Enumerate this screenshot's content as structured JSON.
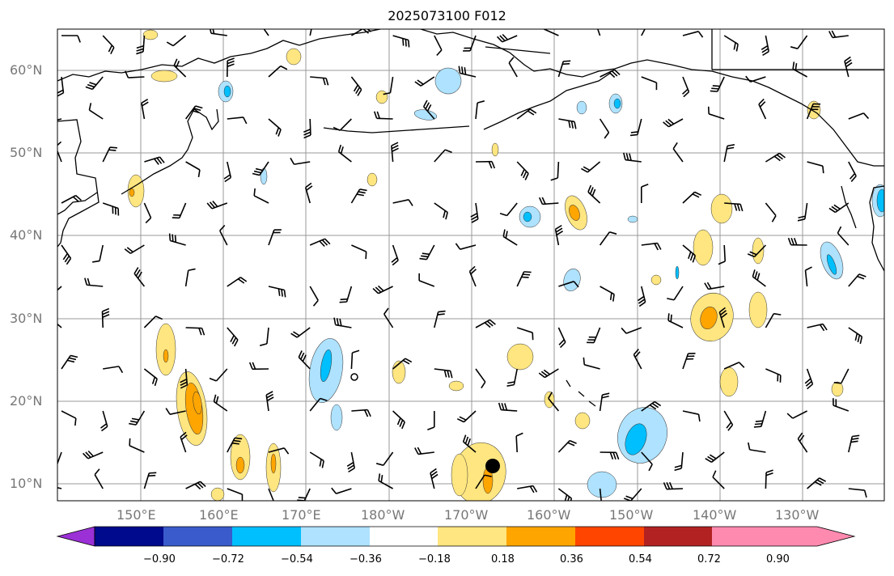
{
  "title": "2025073100 F012",
  "lat_labels": [
    "60°N",
    "50°N",
    "40°N",
    "30°N",
    "20°N",
    "10°N"
  ],
  "lon_labels": [
    "150°E",
    "160°E",
    "170°E",
    "180°W",
    "170°W",
    "160°W",
    "150°W",
    "140°W",
    "130°W"
  ],
  "colorbar": {
    "labels": [
      "−0.90",
      "−0.72",
      "−0.54",
      "−0.36",
      "−0.18",
      "0.18",
      "0.36",
      "0.54",
      "0.72",
      "0.90"
    ],
    "colors": [
      "#9b30d6",
      "#000a8c",
      "#3a5bcc",
      "#00bfff",
      "#aee2ff",
      "#ffffff",
      "#ffe680",
      "#ffa500",
      "#ff4500",
      "#b22222",
      "#ff8ab0"
    ]
  },
  "map": {
    "region": "North Pacific",
    "gridlines": true,
    "marker": "black-dot"
  }
}
